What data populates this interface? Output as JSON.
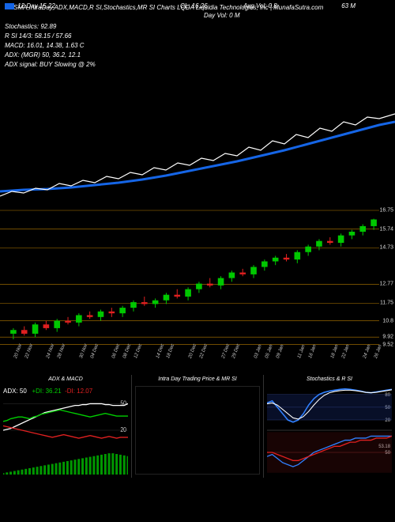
{
  "title": "12 SMA,IntraDay,ADX,MACD,R   SI,Stochastics,MR   SI Charts LQDA   Liquidia Technologies, Inc | MunafaSutra.com",
  "header": {
    "left_label": "12   Day    15.22",
    "center1": "CL: 16.26",
    "center2": "Avg Vol: 0.8",
    "right": "63 M",
    "day_vol": "Day Vol: 0   M",
    "stoch": "Stochastics: 92.89",
    "rsi": "R       SI 14/3: 58.15 / 57.66",
    "macd": "MACD: 16.01,  14.38,  1.63  C",
    "adx": "ADX:                              (MGR) 50,  36.2,  12.1",
    "adx_sig": "ADX  signal:                                   BUY Slowing @ 2%"
  },
  "mainChart": {
    "height": 150,
    "sma_color": "#1565e6",
    "price_color": "#ffffff",
    "sma": [
      [
        0,
        130
      ],
      [
        30,
        128
      ],
      [
        60,
        127
      ],
      [
        90,
        125
      ],
      [
        120,
        122
      ],
      [
        150,
        119
      ],
      [
        180,
        115
      ],
      [
        210,
        110
      ],
      [
        240,
        104
      ],
      [
        270,
        98
      ],
      [
        300,
        92
      ],
      [
        330,
        85
      ],
      [
        360,
        78
      ],
      [
        390,
        70
      ],
      [
        420,
        62
      ],
      [
        450,
        54
      ],
      [
        480,
        46
      ],
      [
        500,
        42
      ]
    ],
    "price": [
      [
        0,
        136
      ],
      [
        15,
        130
      ],
      [
        30,
        132
      ],
      [
        45,
        126
      ],
      [
        60,
        128
      ],
      [
        75,
        120
      ],
      [
        90,
        123
      ],
      [
        105,
        116
      ],
      [
        120,
        119
      ],
      [
        135,
        111
      ],
      [
        150,
        114
      ],
      [
        165,
        106
      ],
      [
        180,
        109
      ],
      [
        195,
        100
      ],
      [
        210,
        103
      ],
      [
        225,
        94
      ],
      [
        240,
        97
      ],
      [
        255,
        88
      ],
      [
        270,
        91
      ],
      [
        285,
        82
      ],
      [
        300,
        85
      ],
      [
        315,
        74
      ],
      [
        330,
        78
      ],
      [
        345,
        66
      ],
      [
        360,
        70
      ],
      [
        375,
        58
      ],
      [
        390,
        62
      ],
      [
        405,
        50
      ],
      [
        420,
        54
      ],
      [
        435,
        42
      ],
      [
        450,
        46
      ],
      [
        465,
        36
      ],
      [
        480,
        38
      ],
      [
        500,
        32
      ]
    ]
  },
  "candleChart": {
    "y_min": 9.5,
    "y_max": 16.75,
    "height": 170,
    "yticks": [
      {
        "v": 16.75,
        "label": "16.75"
      },
      {
        "v": 15.74,
        "label": "15.74"
      },
      {
        "v": 14.73,
        "label": "14.73"
      },
      {
        "v": 12.77,
        "label": "12.77"
      },
      {
        "v": 11.75,
        "label": "11.75"
      },
      {
        "v": 10.8,
        "label": "10.8"
      },
      {
        "v": 9.92,
        "label": "9.92"
      },
      {
        "v": 9.52,
        "label": "9.52"
      }
    ],
    "hlines": [
      16.75,
      15.74,
      14.73,
      12.77,
      11.75,
      10.8,
      9.92,
      9.52
    ],
    "line_color": "#b37a00",
    "up_color": "#00c800",
    "down_color": "#e02020",
    "wick_color": "#888",
    "xlabels": [
      "20 Nov",
      "22 Nov",
      "24 Nov",
      "28 Nov",
      "30 Nov",
      "04 Dec",
      "06 Dec",
      "08 Dec",
      "12 Dec",
      "14 Dec",
      "18 Dec",
      "20 Dec",
      "22 Dec",
      "27 Dec",
      "29 Dec",
      "03 Jan",
      "05 Jan",
      "09 Jan",
      "11 Jan",
      "16 Jan",
      "18 Jan",
      "22 Jan",
      "24 Jan",
      "26 Jan"
    ],
    "candles": [
      {
        "o": 10.1,
        "h": 10.4,
        "l": 9.8,
        "c": 10.3
      },
      {
        "o": 10.3,
        "h": 10.5,
        "l": 10.0,
        "c": 10.1
      },
      {
        "o": 10.1,
        "h": 10.7,
        "l": 9.9,
        "c": 10.6
      },
      {
        "o": 10.6,
        "h": 10.8,
        "l": 10.3,
        "c": 10.4
      },
      {
        "o": 10.4,
        "h": 10.9,
        "l": 10.2,
        "c": 10.8
      },
      {
        "o": 10.8,
        "h": 11.0,
        "l": 10.6,
        "c": 10.7
      },
      {
        "o": 10.7,
        "h": 11.2,
        "l": 10.5,
        "c": 11.1
      },
      {
        "o": 11.1,
        "h": 11.3,
        "l": 10.9,
        "c": 11.0
      },
      {
        "o": 11.0,
        "h": 11.4,
        "l": 10.8,
        "c": 11.3
      },
      {
        "o": 11.3,
        "h": 11.5,
        "l": 11.0,
        "c": 11.2
      },
      {
        "o": 11.2,
        "h": 11.6,
        "l": 11.0,
        "c": 11.5
      },
      {
        "o": 11.5,
        "h": 11.9,
        "l": 11.3,
        "c": 11.8
      },
      {
        "o": 11.8,
        "h": 12.1,
        "l": 11.6,
        "c": 11.7
      },
      {
        "o": 11.7,
        "h": 12.0,
        "l": 11.5,
        "c": 11.9
      },
      {
        "o": 11.9,
        "h": 12.3,
        "l": 11.7,
        "c": 12.2
      },
      {
        "o": 12.2,
        "h": 12.5,
        "l": 12.0,
        "c": 12.1
      },
      {
        "o": 12.1,
        "h": 12.6,
        "l": 11.9,
        "c": 12.5
      },
      {
        "o": 12.5,
        "h": 12.9,
        "l": 12.3,
        "c": 12.8
      },
      {
        "o": 12.8,
        "h": 13.1,
        "l": 12.6,
        "c": 12.7
      },
      {
        "o": 12.7,
        "h": 13.2,
        "l": 12.5,
        "c": 13.1
      },
      {
        "o": 13.1,
        "h": 13.5,
        "l": 12.9,
        "c": 13.4
      },
      {
        "o": 13.4,
        "h": 13.6,
        "l": 13.2,
        "c": 13.3
      },
      {
        "o": 13.3,
        "h": 13.8,
        "l": 13.1,
        "c": 13.7
      },
      {
        "o": 13.7,
        "h": 14.1,
        "l": 13.5,
        "c": 14.0
      },
      {
        "o": 14.0,
        "h": 14.3,
        "l": 13.8,
        "c": 14.2
      },
      {
        "o": 14.2,
        "h": 14.4,
        "l": 14.0,
        "c": 14.1
      },
      {
        "o": 14.1,
        "h": 14.6,
        "l": 13.9,
        "c": 14.5
      },
      {
        "o": 14.5,
        "h": 14.9,
        "l": 14.3,
        "c": 14.8
      },
      {
        "o": 14.8,
        "h": 15.2,
        "l": 14.6,
        "c": 15.1
      },
      {
        "o": 15.1,
        "h": 15.3,
        "l": 14.9,
        "c": 15.0
      },
      {
        "o": 15.0,
        "h": 15.5,
        "l": 14.8,
        "c": 15.4
      },
      {
        "o": 15.4,
        "h": 15.7,
        "l": 15.2,
        "c": 15.6
      },
      {
        "o": 15.6,
        "h": 16.0,
        "l": 15.4,
        "c": 15.9
      },
      {
        "o": 15.9,
        "h": 16.3,
        "l": 15.7,
        "c": 16.26
      }
    ]
  },
  "panels": {
    "adx": {
      "title": "ADX   & MACD",
      "banner": {
        "adx": "ADX: 50",
        "pdi": "+DI: 36.21",
        "ndi": "-DI: 12.07"
      },
      "yticks": [
        50,
        20
      ],
      "hist_color": "#009900",
      "adx_color": "#ffffff",
      "pdi_color": "#00d000",
      "ndi_color": "#e02020",
      "hist": [
        2,
        3,
        4,
        5,
        6,
        7,
        8,
        9,
        10,
        11,
        12,
        13,
        14,
        15,
        16,
        17,
        18,
        19,
        20,
        21,
        22,
        23,
        24,
        25,
        26,
        27,
        28,
        29,
        30,
        30,
        29,
        28,
        27,
        26
      ],
      "adx_line": [
        20,
        21,
        22,
        24,
        26,
        28,
        30,
        32,
        34,
        36,
        38,
        40,
        41,
        42,
        43,
        44,
        45,
        46,
        47,
        48,
        48,
        49,
        49,
        50,
        50,
        50,
        50,
        49,
        49,
        48,
        48,
        48,
        48,
        50
      ],
      "pdi_line": [
        30,
        31,
        33,
        34,
        35,
        35,
        34,
        33,
        35,
        36,
        38,
        39,
        40,
        41,
        42,
        43,
        42,
        41,
        40,
        39,
        38,
        37,
        36,
        35,
        36,
        37,
        38,
        39,
        38,
        37,
        36,
        36,
        36,
        36
      ],
      "ndi_line": [
        25,
        24,
        23,
        22,
        21,
        20,
        19,
        18,
        17,
        16,
        15,
        14,
        13,
        12,
        13,
        14,
        15,
        14,
        13,
        12,
        11,
        12,
        13,
        14,
        13,
        12,
        11,
        12,
        13,
        12,
        11,
        12,
        12,
        12
      ]
    },
    "intra": {
      "title": "Intra  Day Trading Price   & MR       SI"
    },
    "stoch": {
      "title": "Stochastics & R          SI",
      "top_yticks": [
        80,
        50,
        20
      ],
      "bot_yticks": [
        "53.18",
        "50"
      ],
      "k_color": "#3080ff",
      "d_color": "#ffffff",
      "rsi_color": "#3080ff",
      "sig_color": "#e02020",
      "k_line": [
        60,
        65,
        50,
        35,
        20,
        15,
        20,
        35,
        55,
        70,
        80,
        85,
        88,
        90,
        92,
        93,
        92,
        90,
        88,
        85,
        84,
        86,
        88,
        90,
        92
      ],
      "d_line": [
        58,
        60,
        55,
        45,
        35,
        25,
        22,
        28,
        40,
        55,
        68,
        78,
        84,
        87,
        89,
        90,
        90,
        89,
        87,
        85,
        84,
        85,
        87,
        89,
        91
      ],
      "rsi_line": [
        48,
        49,
        47,
        45,
        44,
        43,
        44,
        46,
        48,
        50,
        51,
        52,
        53,
        54,
        55,
        56,
        56,
        57,
        57,
        57,
        58,
        58,
        58,
        58,
        58
      ],
      "sig_line": [
        50,
        50,
        49,
        48,
        47,
        46,
        46,
        47,
        48,
        49,
        50,
        51,
        52,
        53,
        53,
        54,
        55,
        55,
        56,
        56,
        56,
        57,
        57,
        57,
        58
      ]
    }
  }
}
